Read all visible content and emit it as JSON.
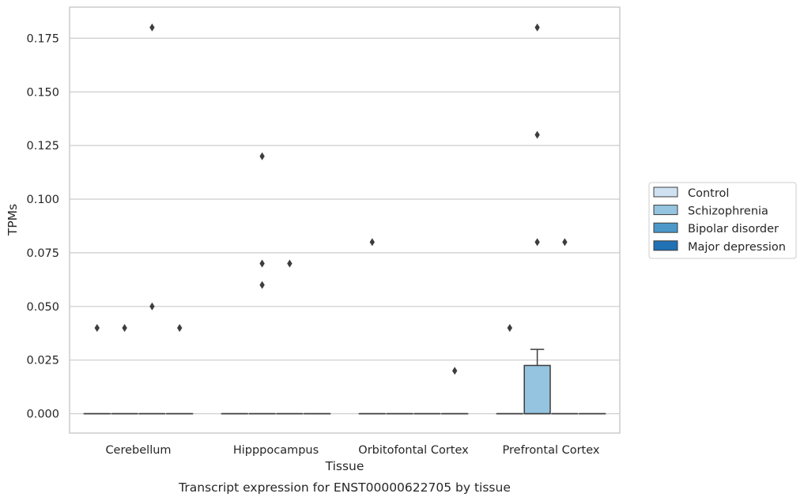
{
  "chart_data": {
    "type": "box",
    "caption": "Transcript expression for ENST00000622705 by tissue",
    "xlabel": "Tissue",
    "ylabel": "TPMs",
    "ylim": [
      -0.009,
      0.1895
    ],
    "yticks": [
      "0.000",
      "0.025",
      "0.050",
      "0.075",
      "0.100",
      "0.125",
      "0.150",
      "0.175"
    ],
    "ytick_values": [
      0,
      0.025,
      0.05,
      0.075,
      0.1,
      0.125,
      0.15,
      0.175
    ],
    "grid": "horizontal",
    "legend_placement": "right",
    "categories": [
      "Cerebellum",
      "Hipppocampus",
      "Orbitofontal Cortex",
      "Prefrontal Cortex"
    ],
    "series": [
      {
        "name": "Control",
        "color": "#d0e1f2",
        "boxes": [
          {
            "q1": 0,
            "median": 0,
            "q3": 0,
            "whisker_low": 0,
            "whisker_high": 0,
            "outliers": [
              0.04
            ]
          },
          {
            "q1": 0,
            "median": 0,
            "q3": 0,
            "whisker_low": 0,
            "whisker_high": 0,
            "outliers": []
          },
          {
            "q1": 0,
            "median": 0,
            "q3": 0,
            "whisker_low": 0,
            "whisker_high": 0,
            "outliers": [
              0.08
            ]
          },
          {
            "q1": 0,
            "median": 0,
            "q3": 0,
            "whisker_low": 0,
            "whisker_high": 0,
            "outliers": [
              0.04
            ]
          }
        ]
      },
      {
        "name": "Schizophrenia",
        "color": "#94c4df",
        "boxes": [
          {
            "q1": 0,
            "median": 0,
            "q3": 0,
            "whisker_low": 0,
            "whisker_high": 0,
            "outliers": [
              0.04
            ]
          },
          {
            "q1": 0,
            "median": 0,
            "q3": 0,
            "whisker_low": 0,
            "whisker_high": 0,
            "outliers": [
              0.12,
              0.07,
              0.06
            ]
          },
          {
            "q1": 0,
            "median": 0,
            "q3": 0,
            "whisker_low": 0,
            "whisker_high": 0,
            "outliers": []
          },
          {
            "q1": 0,
            "median": 0,
            "q3": 0.0225,
            "whisker_low": 0,
            "whisker_high": 0.03,
            "outliers": [
              0.18,
              0.13,
              0.08
            ]
          }
        ]
      },
      {
        "name": "Bipolar disorder",
        "color": "#4a98c9",
        "boxes": [
          {
            "q1": 0,
            "median": 0,
            "q3": 0,
            "whisker_low": 0,
            "whisker_high": 0,
            "outliers": [
              0.18,
              0.05
            ]
          },
          {
            "q1": 0,
            "median": 0,
            "q3": 0,
            "whisker_low": 0,
            "whisker_high": 0,
            "outliers": [
              0.07
            ]
          },
          {
            "q1": 0,
            "median": 0,
            "q3": 0,
            "whisker_low": 0,
            "whisker_high": 0,
            "outliers": []
          },
          {
            "q1": 0,
            "median": 0,
            "q3": 0,
            "whisker_low": 0,
            "whisker_high": 0,
            "outliers": [
              0.08
            ]
          }
        ]
      },
      {
        "name": "Major depression",
        "color": "#2171b5",
        "boxes": [
          {
            "q1": 0,
            "median": 0,
            "q3": 0,
            "whisker_low": 0,
            "whisker_high": 0,
            "outliers": [
              0.04
            ]
          },
          {
            "q1": 0,
            "median": 0,
            "q3": 0,
            "whisker_low": 0,
            "whisker_high": 0,
            "outliers": []
          },
          {
            "q1": 0,
            "median": 0,
            "q3": 0,
            "whisker_low": 0,
            "whisker_high": 0,
            "outliers": [
              0.02
            ]
          },
          {
            "q1": 0,
            "median": 0,
            "q3": 0,
            "whisker_low": 0,
            "whisker_high": 0,
            "outliers": []
          }
        ]
      }
    ]
  }
}
